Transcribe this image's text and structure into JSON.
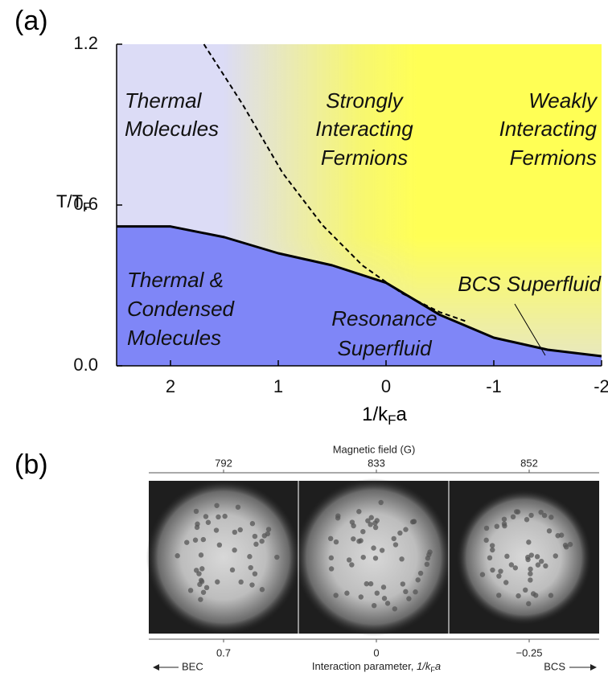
{
  "chart_data": {
    "type": "line",
    "panel_label": "(a)",
    "xlim": [
      2.5,
      -2
    ],
    "ylim": [
      0,
      1.2
    ],
    "xticks": [
      2,
      1,
      0,
      -1,
      -2
    ],
    "yticks": [
      {
        "value": 0,
        "label": "0.0"
      },
      0.6,
      1.2
    ],
    "xlabel": {
      "main": "1/k",
      "sub": "F",
      "end": "a"
    },
    "ylabel": {
      "main": "T/T",
      "sub": "F"
    },
    "series": [
      {
        "color": "#000000",
        "fill": "#7f86f7",
        "line_style": "solid",
        "x": [
          2.5,
          2,
          1.5,
          1,
          0.5,
          0,
          -0.5,
          -1,
          -1.5,
          -2
        ],
        "values": [
          0.52,
          0.52,
          0.48,
          0.42,
          0.375,
          0.31,
          0.19,
          0.105,
          0.06,
          0.036
        ]
      },
      {
        "color": "#000000",
        "line_style": "dashed",
        "x": [
          1.69,
          1.33,
          0.96,
          0.59,
          0.22,
          -0.15,
          -0.5,
          -0.75
        ],
        "values": [
          1.2,
          0.975,
          0.72,
          0.525,
          0.375,
          0.27,
          0.2,
          0.165
        ]
      }
    ],
    "annotations": [
      {
        "lines": [
          "Thermal",
          "Molecules"
        ]
      },
      {
        "lines": [
          "Strongly",
          "Interacting",
          "Fermions"
        ]
      },
      {
        "lines": [
          "Weakly",
          "Interacting",
          "Fermions"
        ]
      },
      {
        "lines": [
          "Thermal &",
          "Condensed",
          "Molecules"
        ]
      },
      {
        "lines": [
          "BCS Superfluid"
        ]
      },
      {
        "lines": [
          "Resonance",
          "Superfluid"
        ]
      }
    ]
  },
  "panel_b": {
    "label": "(b)",
    "top_title": "Magnetic field (G)",
    "top_ticks": [
      792,
      833,
      852
    ],
    "bottom_ticks": [
      0.7,
      0,
      {
        "value": -0.25,
        "label": "−0.25"
      }
    ],
    "bottom_title": {
      "text": "Interaction parameter, ",
      "var": "1/k",
      "sub": "F",
      "end": "a"
    },
    "left": "BEC",
    "right": "BCS"
  }
}
